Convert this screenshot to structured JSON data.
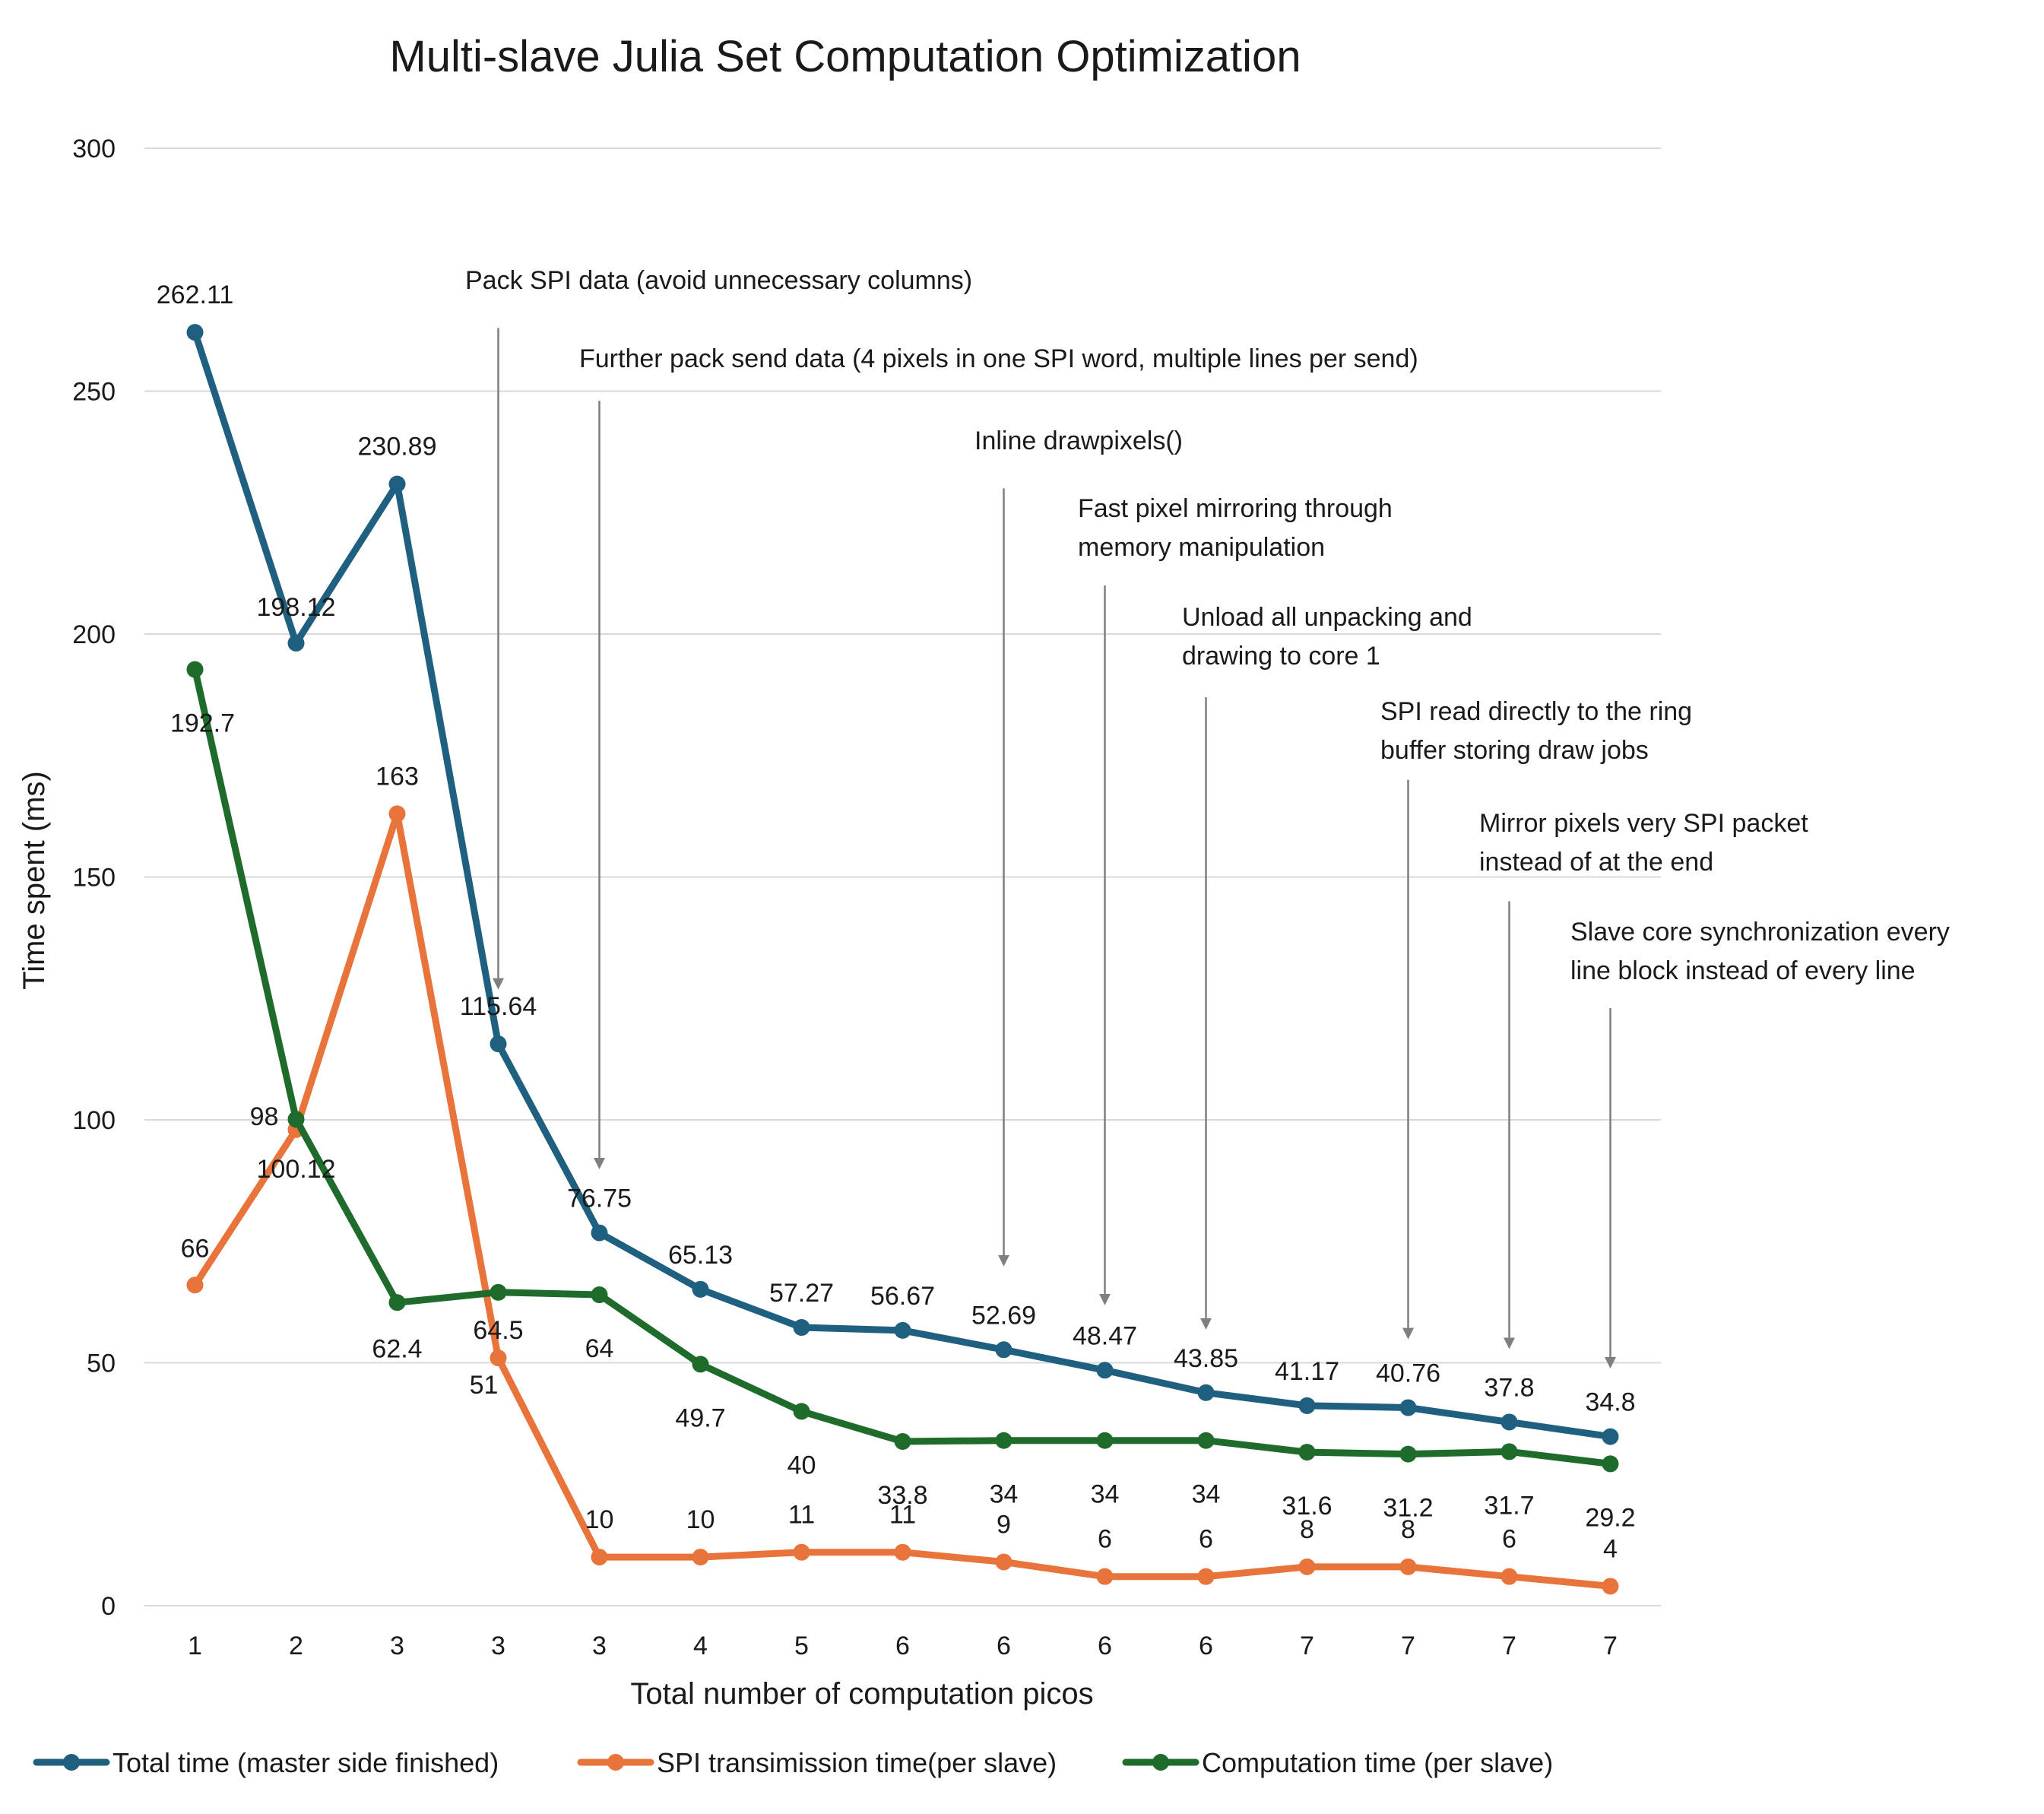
{
  "chart_data": {
    "type": "line",
    "title": "Multi-slave Julia Set Computation Optimization",
    "xlabel": "Total number of computation picos",
    "ylabel": "Time spent (ms)",
    "ylim": [
      0,
      300
    ],
    "yticks": [
      0,
      50,
      100,
      150,
      200,
      250,
      300
    ],
    "grid": true,
    "legend_position": "bottom",
    "categories": [
      "1",
      "2",
      "3",
      "3",
      "3",
      "4",
      "5",
      "6",
      "6",
      "6",
      "6",
      "7",
      "7",
      "7",
      "7"
    ],
    "series": [
      {
        "name": "Total time (master side finished)",
        "color": "#1f5f7f",
        "values": [
          262.11,
          198.12,
          230.89,
          115.64,
          76.75,
          65.13,
          57.27,
          56.67,
          52.69,
          48.47,
          43.85,
          41.17,
          40.76,
          37.8,
          34.8
        ],
        "labels": [
          "262.11",
          "198.12",
          "230.89",
          "115.64",
          "76.75",
          "65.13",
          "57.27",
          "56.67",
          "52.69",
          "48.47",
          "43.85",
          "41.17",
          "40.76",
          "37.8",
          "34.8"
        ]
      },
      {
        "name": "SPI transimission time(per slave)",
        "color": "#e8743b",
        "values": [
          66,
          98,
          163,
          51,
          10,
          10,
          11,
          11,
          9,
          6,
          6,
          8,
          8,
          6,
          4
        ],
        "labels": [
          "66",
          "98",
          "163",
          "51",
          "10",
          "10",
          "11",
          "11",
          "9",
          "6",
          "6",
          "8",
          "8",
          "6",
          "4"
        ]
      },
      {
        "name": "Computation time (per slave)",
        "color": "#1e6b2b",
        "values": [
          192.7,
          100.12,
          62.4,
          64.5,
          64,
          49.7,
          40,
          33.8,
          34,
          34,
          34,
          31.6,
          31.2,
          31.7,
          29.2
        ],
        "labels": [
          "192.7",
          "100.12",
          "62.4",
          "64.5",
          "64",
          "49.7",
          "40",
          "33.8",
          "34",
          "34",
          "34",
          "31.6",
          "31.2",
          "31.7",
          "29.2"
        ]
      }
    ],
    "annotations": [
      {
        "lines": [
          "Pack SPI data (avoid unnecessary columns)"
        ],
        "category_index": 3,
        "arrow_from": 263,
        "arrow_to": 128
      },
      {
        "lines": [
          "Further pack send data (4 pixels in one SPI word, multiple lines per send)"
        ],
        "category_index": 4,
        "arrow_from": 248,
        "arrow_to": 91
      },
      {
        "lines": [
          "Inline drawpixels()"
        ],
        "category_index": 8,
        "arrow_from": 230,
        "arrow_to": 71
      },
      {
        "lines": [
          "Fast pixel mirroring through",
          "memory manipulation"
        ],
        "category_index": 9,
        "arrow_from": 210,
        "arrow_to": 63
      },
      {
        "lines": [
          "Unload all unpacking and",
          "drawing to core 1"
        ],
        "category_index": 10,
        "arrow_from": 187,
        "arrow_to": 58
      },
      {
        "lines": [
          "SPI read directly to the ring",
          "buffer storing draw jobs"
        ],
        "category_index": 12,
        "arrow_from": 170,
        "arrow_to": 56
      },
      {
        "lines": [
          "Mirror pixels very SPI packet",
          "instead of at the end"
        ],
        "category_index": 13,
        "arrow_from": 145,
        "arrow_to": 54
      },
      {
        "lines": [
          "Slave core synchronization every",
          "line block instead of every line"
        ],
        "category_index": 14,
        "arrow_from": 123,
        "arrow_to": 50
      }
    ]
  }
}
